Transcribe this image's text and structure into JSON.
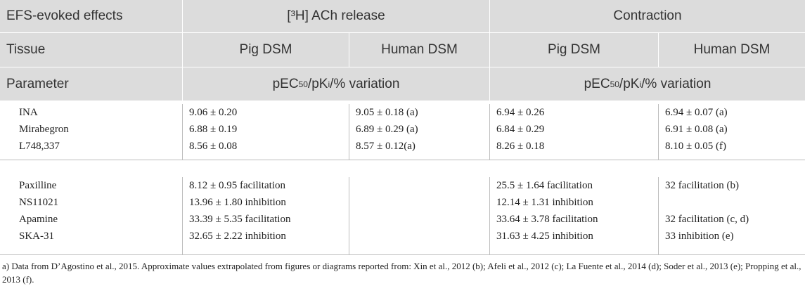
{
  "header": {
    "row1": {
      "label": "EFS-evoked effects",
      "release": "[³H] ACh release",
      "contraction": "Contraction"
    },
    "row2": {
      "label": "Tissue",
      "cols": [
        "Pig DSM",
        "Human DSM",
        "Pig DSM",
        "Human DSM"
      ]
    },
    "row3": {
      "label": "Parameter",
      "param_prefix": "pEC",
      "param_sub": "50",
      "param_mid": "/pK",
      "param_sub2": "i",
      "param_suffix": "/% variation"
    }
  },
  "group1": {
    "names": [
      "INA",
      "Mirabegron",
      "L748,337"
    ],
    "pig_release": [
      "9.06 ± 0.20",
      "6.88 ± 0.19",
      "8.56 ± 0.08"
    ],
    "human_release": [
      "9.05 ± 0.18 (a)",
      "6.89 ± 0.29 (a)",
      "8.57 ± 0.12(a)"
    ],
    "pig_contraction": [
      "6.94 ± 0.26",
      "6.84 ± 0.29",
      "8.26 ± 0.18"
    ],
    "human_contraction": [
      "6.94 ± 0.07 (a)",
      "6.91 ± 0.08 (a)",
      "8.10 ± 0.05 (f)"
    ]
  },
  "group2": {
    "names": [
      "Paxilline",
      "NS11021",
      "Apamine",
      "SKA-31"
    ],
    "pig_release": [
      "8.12 ± 0.95 facilitation",
      "13.96 ± 1.80 inhibition",
      "33.39 ± 5.35 facilitation",
      "32.65 ± 2.22 inhibition"
    ],
    "human_release": [
      "",
      "",
      "",
      ""
    ],
    "pig_contraction": [
      "25.5 ± 1.64 facilitation",
      "12.14 ± 1.31 inhibition",
      "33.64 ± 3.78 facilitation",
      "31.63 ± 4.25 inhibition"
    ],
    "human_contraction": [
      "32 facilitation (b)",
      "",
      "32 facilitation (c, d)",
      "33 inhibition (e)"
    ]
  },
  "footnote": "a) Data from D’Agostino et al., 2015. Approximate values extrapolated from figures or diagrams reported from: Xin et al., 2012 (b); Afeli et al., 2012 (c); La Fuente et al., 2014 (d); Soder et al., 2013 (e); Propping et al., 2013 (f)."
}
